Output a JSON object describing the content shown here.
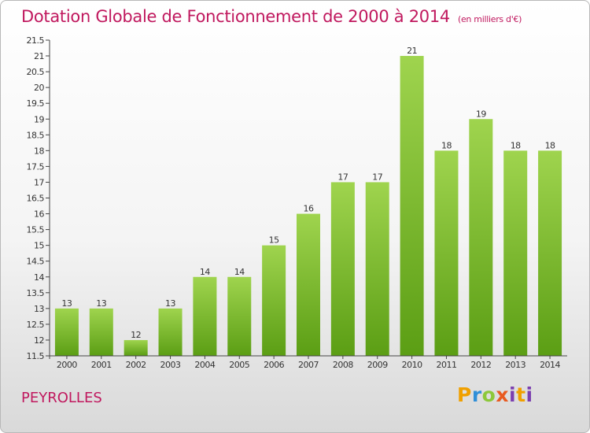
{
  "title": "Dotation Globale de Fonctionnement de 2000 à 2014",
  "subtitle": "(en milliers d'€)",
  "place": "PEYROLLES",
  "logo_text": "Proxiti",
  "colors": {
    "title": "#c0185e",
    "bar_top": "#9fd44e",
    "bar_bottom": "#5b9e14",
    "axis": "#444444",
    "tick_text": "#333333"
  },
  "chart_data": {
    "type": "bar",
    "categories": [
      "2000",
      "2001",
      "2002",
      "2003",
      "2004",
      "2005",
      "2006",
      "2007",
      "2008",
      "2009",
      "2010",
      "2011",
      "2012",
      "2013",
      "2014"
    ],
    "values": [
      13,
      13,
      12,
      13,
      14,
      14,
      15,
      16,
      17,
      17,
      21,
      18,
      19,
      18,
      18
    ],
    "value_labels": [
      "13",
      "13",
      "12",
      "13",
      "14",
      "14",
      "15",
      "16",
      "17",
      "17",
      "21",
      "18",
      "19",
      "18",
      "18"
    ],
    "ylim": [
      11.5,
      21.5
    ],
    "yticks": [
      11.5,
      12,
      12.5,
      13,
      13.5,
      14,
      14.5,
      15,
      15.5,
      16,
      16.5,
      17,
      17.5,
      18,
      18.5,
      19,
      19.5,
      20,
      20.5,
      21,
      21.5
    ],
    "ytick_labels": [
      "11.5",
      "12",
      "12.5",
      "13",
      "13.5",
      "14",
      "14.5",
      "15",
      "15.5",
      "16",
      "16.5",
      "17",
      "17.5",
      "18",
      "18.5",
      "19",
      "19.5",
      "20",
      "20.5",
      "21",
      "21.5"
    ],
    "grid": false,
    "legend": "none",
    "title": "Dotation Globale de Fonctionnement de 2000 à 2014",
    "subtitle": "(en milliers d'€)"
  }
}
